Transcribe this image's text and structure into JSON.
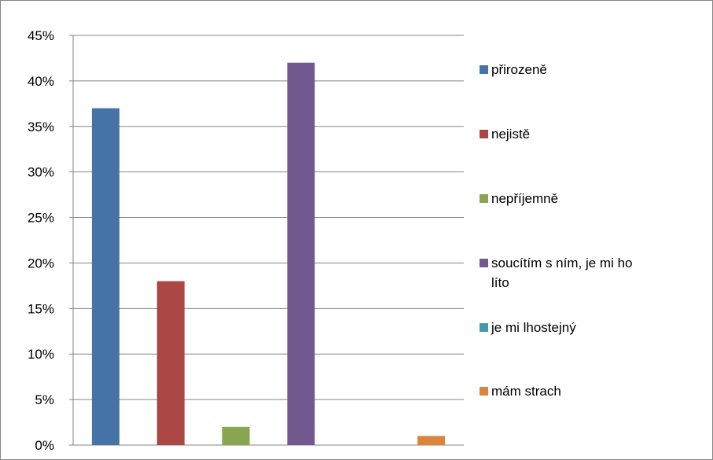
{
  "chart_data": {
    "type": "bar",
    "title": "",
    "xlabel": "",
    "ylabel": "",
    "ylim": [
      0,
      45
    ],
    "y_ticks": [
      "0%",
      "5%",
      "10%",
      "15%",
      "20%",
      "25%",
      "30%",
      "35%",
      "40%",
      "45%"
    ],
    "grid": true,
    "legend_position": "right",
    "series": [
      {
        "name": "přirozeně",
        "value": 37,
        "color": "#4572A7",
        "legend_lines": [
          "přirozeně"
        ]
      },
      {
        "name": "nejistě",
        "value": 18,
        "color": "#AA4643",
        "legend_lines": [
          "nejistě"
        ]
      },
      {
        "name": "nepříjemně",
        "value": 2,
        "color": "#89A54E",
        "legend_lines": [
          "nepříjemně"
        ]
      },
      {
        "name": "soucítím s ním, je mi ho líto",
        "value": 42,
        "color": "#71588F",
        "legend_lines": [
          "soucítím s ním, je mi ho",
          "líto"
        ]
      },
      {
        "name": "je mi lhostejný",
        "value": 0,
        "color": "#4198AF",
        "legend_lines": [
          "je mi lhostejný"
        ]
      },
      {
        "name": "mám strach",
        "value": 1,
        "color": "#DB843D",
        "legend_lines": [
          "mám strach"
        ]
      }
    ]
  }
}
